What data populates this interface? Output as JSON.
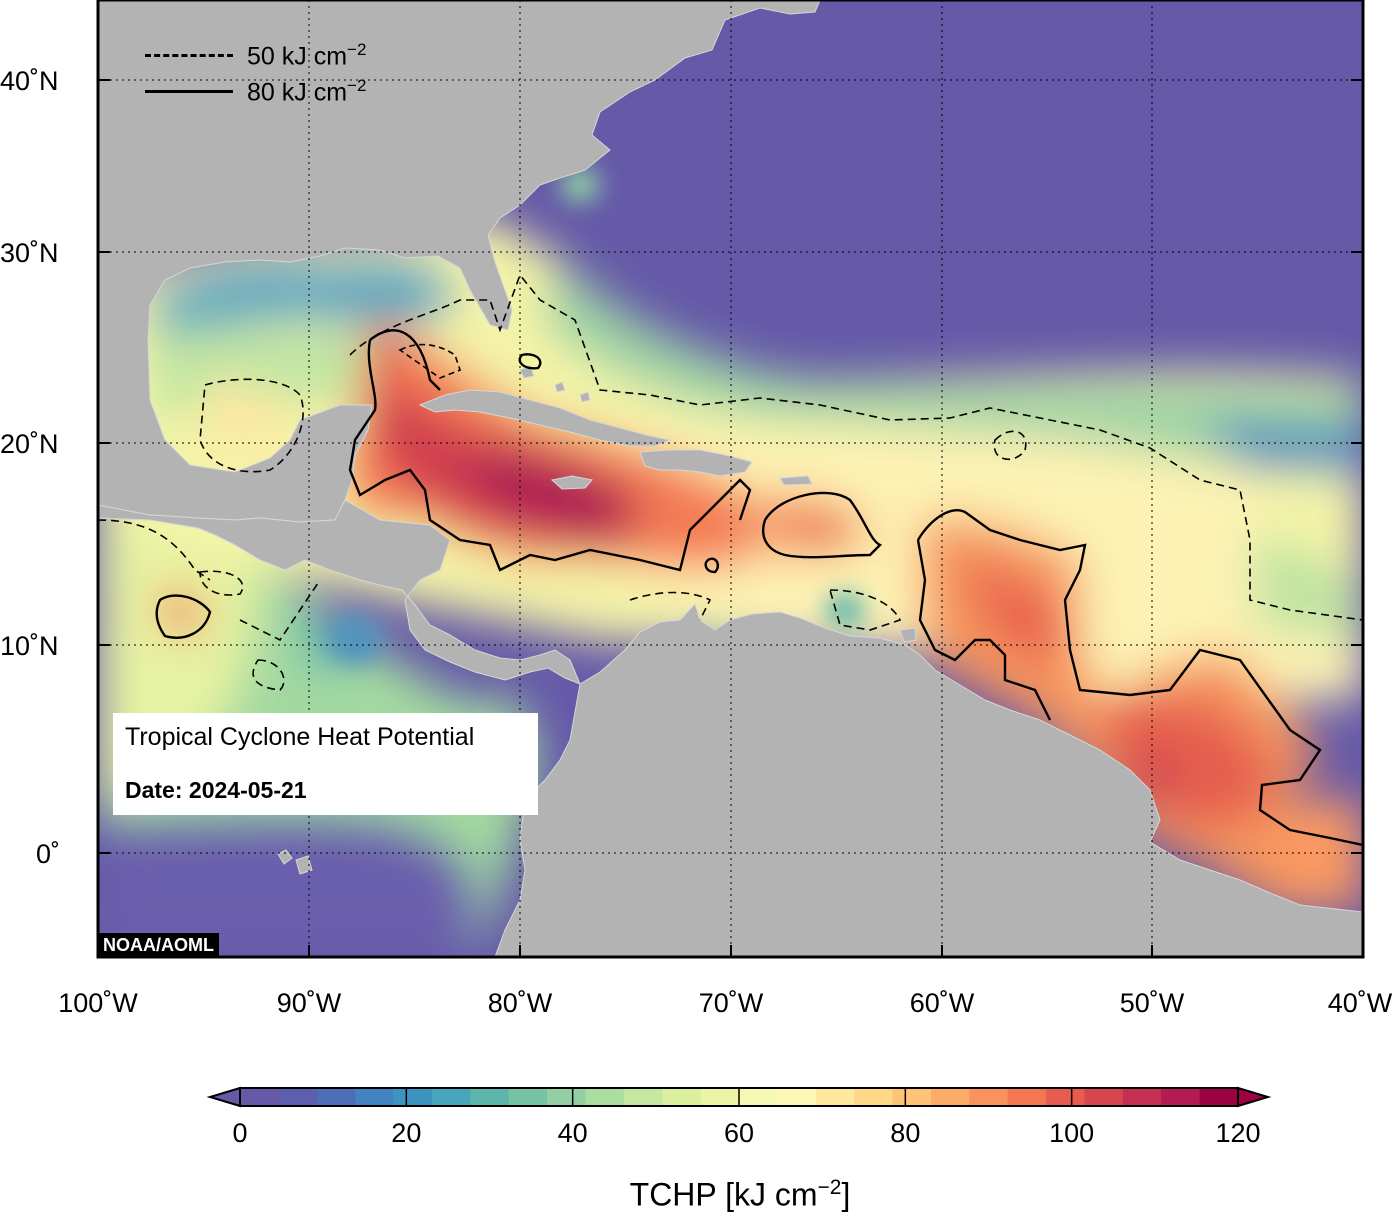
{
  "map": {
    "title": "Tropical Cyclone Heat Potential",
    "date_label": "Date:",
    "date_value": "2024-05-21",
    "credit": "NOAA/AOML",
    "lon_range": [
      -100,
      -40
    ],
    "lat_range": [
      -5,
      45
    ],
    "lon_ticks": [
      "100˚W",
      "90˚W",
      "80˚W",
      "70˚W",
      "60˚W",
      "50˚W",
      "40˚W"
    ],
    "lat_ticks": [
      "40˚N",
      "30˚N",
      "20˚N",
      "10˚N",
      "0˚"
    ],
    "grid": true,
    "land_color": "#b3b3b3",
    "ocean_low_color": "#6559a8",
    "legend": [
      {
        "style": "dashed",
        "value": "50",
        "unit": "kJ cm",
        "exp": "−2"
      },
      {
        "style": "solid",
        "value": "80",
        "unit": "kJ cm",
        "exp": "−2"
      }
    ]
  },
  "colorbar": {
    "min": 0,
    "max": 120,
    "ticks": [
      "0",
      "20",
      "40",
      "60",
      "80",
      "100",
      "120"
    ],
    "label_main": "TCHP [kJ cm",
    "label_exp": "−2",
    "label_end": "]",
    "colors": [
      "#6559a8",
      "#5b5fae",
      "#4f6db5",
      "#4383bf",
      "#3d94c1",
      "#48a6bc",
      "#5db5ac",
      "#76c3a6",
      "#92d0a3",
      "#abdca2",
      "#c5e7a0",
      "#dbef9e",
      "#ebf5a8",
      "#f6f9b4",
      "#fdf7b8",
      "#fee99e",
      "#fed887",
      "#fdc478",
      "#fcac69",
      "#f9925c",
      "#f47753",
      "#e85c4f",
      "#d8454e",
      "#c62f51",
      "#b41b52",
      "#9e0142"
    ]
  }
}
